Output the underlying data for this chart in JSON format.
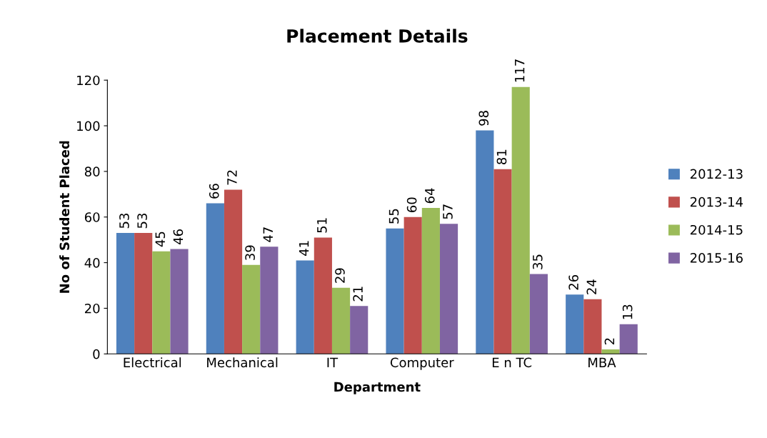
{
  "chart_data": {
    "type": "bar",
    "title": "Placement Details",
    "xlabel": "Department",
    "ylabel": "No of Student Placed",
    "categories": [
      "Electrical",
      "Mechanical",
      "IT",
      "Computer",
      "E n TC",
      "MBA"
    ],
    "series": [
      {
        "name": "2012-13",
        "color": "#4f81bd",
        "values": [
          53,
          66,
          41,
          55,
          98,
          26
        ]
      },
      {
        "name": "2013-14",
        "color": "#c0504d",
        "values": [
          53,
          72,
          51,
          60,
          81,
          24
        ]
      },
      {
        "name": "2014-15",
        "color": "#9bbb59",
        "values": [
          45,
          39,
          29,
          64,
          117,
          2
        ]
      },
      {
        "name": "2015-16",
        "color": "#8064a2",
        "values": [
          46,
          47,
          21,
          57,
          35,
          13
        ]
      }
    ],
    "ylim": [
      0,
      120
    ],
    "yticks": [
      0,
      20,
      40,
      60,
      80,
      100,
      120
    ],
    "data_labels": true,
    "legend": "right",
    "grid": false
  }
}
